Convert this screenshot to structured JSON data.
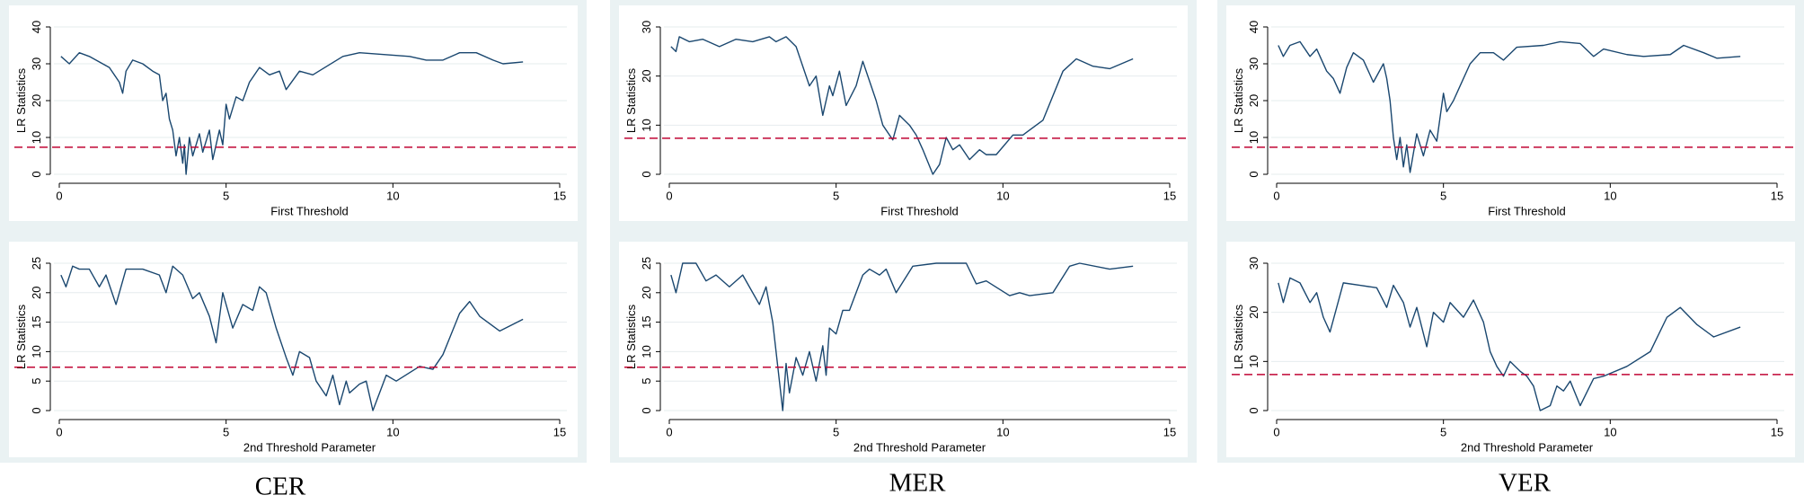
{
  "panel_labels": [
    "CER",
    "MER",
    "VER"
  ],
  "chart_data": [
    {
      "type": "line",
      "x_label": "First Threshold",
      "y_label": "LR Statistics",
      "xlim": [
        0,
        15
      ],
      "ylim": [
        0,
        40
      ],
      "xticks": [
        0,
        5,
        10,
        15
      ],
      "yticks": [
        0,
        10,
        20,
        30,
        40
      ],
      "grid": true,
      "color": "#1a476f",
      "reference_line": {
        "value": 7.35,
        "color": "#c10534",
        "style": "dashed"
      },
      "x": [
        0.05,
        0.3,
        0.6,
        0.9,
        1.1,
        1.3,
        1.5,
        1.8,
        1.9,
        2.0,
        2.2,
        2.5,
        2.8,
        3.0,
        3.1,
        3.2,
        3.3,
        3.4,
        3.5,
        3.6,
        3.7,
        3.75,
        3.8,
        3.9,
        4.0,
        4.2,
        4.3,
        4.5,
        4.6,
        4.8,
        4.9,
        5.0,
        5.1,
        5.3,
        5.5,
        5.7,
        6.0,
        6.3,
        6.6,
        6.8,
        7.2,
        7.6,
        8.5,
        9.0,
        10.5,
        11.0,
        11.5,
        12.0,
        12.5,
        13.0,
        13.3,
        13.9
      ],
      "values": [
        32,
        30,
        33,
        32,
        31,
        30,
        29,
        25,
        22,
        28,
        31,
        30,
        28,
        27,
        20,
        22,
        15,
        12,
        5,
        10,
        3,
        8,
        0,
        10,
        5,
        11,
        6,
        12,
        4,
        12,
        8,
        19,
        15,
        21,
        20,
        25,
        29,
        27,
        28,
        23,
        28,
        27,
        32,
        33,
        32,
        31,
        31,
        33,
        33,
        31,
        30,
        30.5
      ]
    },
    {
      "type": "line",
      "x_label": "2nd Threshold Parameter",
      "y_label": "LR Statistics",
      "xlim": [
        0,
        15
      ],
      "ylim": [
        0,
        25
      ],
      "xticks": [
        0,
        5,
        10,
        15
      ],
      "yticks": [
        0,
        5,
        10,
        15,
        20,
        25
      ],
      "grid": true,
      "color": "#1a476f",
      "reference_line": {
        "value": 7.35,
        "color": "#c10534",
        "style": "dashed"
      },
      "x": [
        0.05,
        0.2,
        0.4,
        0.6,
        0.9,
        1.2,
        1.4,
        1.7,
        2.0,
        2.5,
        3.0,
        3.2,
        3.4,
        3.7,
        4.0,
        4.2,
        4.5,
        4.7,
        4.9,
        5.2,
        5.5,
        5.8,
        6.0,
        6.2,
        6.5,
        6.8,
        7.0,
        7.2,
        7.5,
        7.7,
        8.0,
        8.2,
        8.4,
        8.6,
        8.7,
        9.0,
        9.2,
        9.4,
        9.6,
        9.8,
        10.1,
        10.8,
        11.2,
        11.5,
        12.0,
        12.3,
        12.6,
        13.2,
        13.9
      ],
      "values": [
        23,
        21,
        24.5,
        24,
        24,
        21,
        23,
        18,
        24,
        24,
        23,
        20,
        24.5,
        23,
        19,
        20,
        16,
        11.5,
        20,
        14,
        18,
        17,
        21,
        20,
        14,
        9,
        6,
        10,
        9,
        5,
        2.5,
        6,
        1,
        5,
        3,
        4.5,
        5,
        0,
        3,
        6,
        5,
        7.5,
        7,
        9.5,
        16.5,
        18.5,
        16,
        13.5,
        15.5
      ]
    },
    {
      "type": "line",
      "x_label": "First Threshold",
      "y_label": "LR Statistics",
      "xlim": [
        0,
        15
      ],
      "ylim": [
        0,
        30
      ],
      "xticks": [
        0,
        5,
        10,
        15
      ],
      "yticks": [
        0,
        10,
        20,
        30
      ],
      "grid": true,
      "color": "#1a476f",
      "reference_line": {
        "value": 7.35,
        "color": "#c10534",
        "style": "dashed"
      },
      "x": [
        0.05,
        0.2,
        0.3,
        0.6,
        1.0,
        1.5,
        2.0,
        2.5,
        3.0,
        3.2,
        3.5,
        3.8,
        4.0,
        4.2,
        4.4,
        4.6,
        4.8,
        4.9,
        5.1,
        5.3,
        5.6,
        5.8,
        6.0,
        6.2,
        6.4,
        6.5,
        6.7,
        6.9,
        7.2,
        7.4,
        7.6,
        7.9,
        8.1,
        8.3,
        8.5,
        8.7,
        9.0,
        9.3,
        9.5,
        9.8,
        10.3,
        10.6,
        11.2,
        11.8,
        12.2,
        12.7,
        13.2,
        13.9
      ],
      "values": [
        26,
        25,
        28,
        27,
        27.5,
        26,
        27.5,
        27,
        28,
        27,
        28,
        26,
        22,
        18,
        20,
        12,
        18,
        16,
        21,
        14,
        18,
        23,
        19,
        15,
        10,
        9,
        7,
        12,
        10,
        8,
        5,
        0,
        2,
        7.5,
        5,
        6,
        3,
        5,
        4,
        4,
        8,
        8,
        11,
        21,
        23.5,
        22,
        21.5,
        23.5
      ]
    },
    {
      "type": "line",
      "x_label": "2nd Threshold Parameter",
      "y_label": "LR Statistics",
      "xlim": [
        0,
        15
      ],
      "ylim": [
        0,
        25
      ],
      "xticks": [
        0,
        5,
        10,
        15
      ],
      "yticks": [
        0,
        5,
        10,
        15,
        20,
        25
      ],
      "grid": true,
      "color": "#1a476f",
      "reference_line": {
        "value": 7.35,
        "color": "#c10534",
        "style": "dashed"
      },
      "x": [
        0.05,
        0.2,
        0.4,
        0.8,
        1.1,
        1.4,
        1.8,
        2.2,
        2.4,
        2.7,
        2.9,
        3.1,
        3.2,
        3.3,
        3.4,
        3.5,
        3.6,
        3.8,
        4.0,
        4.2,
        4.4,
        4.6,
        4.7,
        4.8,
        5.0,
        5.2,
        5.4,
        5.6,
        5.8,
        6.0,
        6.3,
        6.5,
        6.8,
        7.3,
        8.0,
        8.9,
        9.2,
        9.5,
        10.2,
        10.5,
        10.8,
        11.5,
        12.0,
        12.3,
        13.2,
        13.9
      ],
      "values": [
        23,
        20,
        25,
        25,
        22,
        23,
        21,
        23,
        21,
        18,
        21,
        15,
        10,
        5,
        0,
        8,
        3,
        9,
        6,
        10,
        5,
        11,
        6,
        14,
        13,
        17,
        17,
        20,
        23,
        24,
        23,
        24,
        20,
        24.5,
        25,
        25,
        21.5,
        22,
        19.5,
        20,
        19.5,
        20,
        24.5,
        25,
        24,
        24.5
      ]
    },
    {
      "type": "line",
      "x_label": "First Threshold",
      "y_label": "LR Statistics",
      "xlim": [
        0,
        15
      ],
      "ylim": [
        0,
        40
      ],
      "xticks": [
        0,
        5,
        10,
        15
      ],
      "yticks": [
        0,
        10,
        20,
        30,
        40
      ],
      "grid": true,
      "color": "#1a476f",
      "reference_line": {
        "value": 7.35,
        "color": "#c10534",
        "style": "dashed"
      },
      "x": [
        0.05,
        0.2,
        0.4,
        0.7,
        1.0,
        1.2,
        1.5,
        1.7,
        1.9,
        2.1,
        2.3,
        2.6,
        2.9,
        3.2,
        3.3,
        3.4,
        3.5,
        3.6,
        3.7,
        3.8,
        3.9,
        4.0,
        4.2,
        4.4,
        4.6,
        4.8,
        5.0,
        5.1,
        5.3,
        5.5,
        5.8,
        6.1,
        6.5,
        6.8,
        7.2,
        8.0,
        8.5,
        9.1,
        9.5,
        9.8,
        10.5,
        11.0,
        11.8,
        12.2,
        12.8,
        13.2,
        13.9
      ],
      "values": [
        35,
        32,
        35,
        36,
        32,
        34,
        28,
        26,
        22,
        29,
        33,
        31,
        25,
        30,
        26,
        20,
        10,
        4,
        10,
        2,
        8,
        0.5,
        11,
        5,
        12,
        9,
        22,
        17,
        20,
        24,
        30,
        33,
        33,
        31,
        34.5,
        35,
        36,
        35.5,
        32,
        34,
        32.5,
        32,
        32.5,
        35,
        33,
        31.5,
        32
      ]
    },
    {
      "type": "line",
      "x_label": "2nd Threshold Parameter",
      "y_label": "LR Statistics",
      "xlim": [
        0,
        15
      ],
      "ylim": [
        0,
        30
      ],
      "xticks": [
        0,
        5,
        10,
        15
      ],
      "yticks": [
        0,
        10,
        20,
        30
      ],
      "grid": true,
      "color": "#1a476f",
      "reference_line": {
        "value": 7.35,
        "color": "#c10534",
        "style": "dashed"
      },
      "x": [
        0.05,
        0.2,
        0.4,
        0.7,
        1.0,
        1.2,
        1.4,
        1.6,
        2.0,
        2.5,
        3.0,
        3.3,
        3.5,
        3.8,
        4.0,
        4.2,
        4.5,
        4.7,
        5.0,
        5.2,
        5.6,
        5.9,
        6.2,
        6.4,
        6.6,
        6.8,
        7.0,
        7.3,
        7.5,
        7.7,
        7.9,
        8.2,
        8.4,
        8.6,
        8.8,
        9.1,
        9.5,
        9.8,
        10.5,
        11.2,
        11.7,
        12.1,
        12.6,
        13.1,
        13.9
      ],
      "values": [
        26,
        22,
        27,
        26,
        22,
        24,
        19,
        16,
        26,
        25.5,
        25,
        21,
        25.5,
        22,
        17,
        21,
        13,
        20,
        18,
        22,
        19,
        22.5,
        18,
        12,
        9,
        7,
        10,
        8,
        7,
        5,
        0,
        1,
        5,
        4,
        6,
        1,
        6.5,
        7,
        9,
        12,
        19,
        21,
        17.5,
        15,
        17
      ]
    }
  ]
}
